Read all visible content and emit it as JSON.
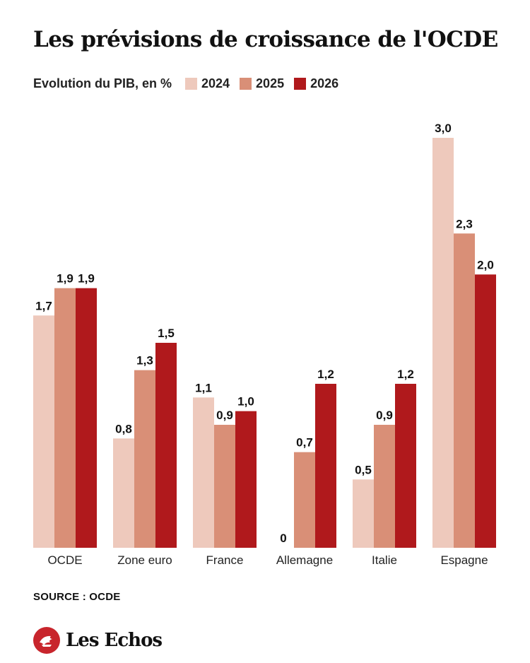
{
  "chart_data": {
    "type": "bar",
    "title": "Les prévisions de croissance de l'OCDE",
    "subtitle": "Evolution du PIB, en %",
    "categories": [
      "OCDE",
      "Zone euro",
      "France",
      "Allemagne",
      "Italie",
      "Espagne"
    ],
    "series": [
      {
        "name": "2024",
        "color": "#eec9bc",
        "values": [
          1.7,
          0.8,
          1.1,
          0,
          0.5,
          3.0
        ],
        "labels": [
          "1,7",
          "0,8",
          "1,1",
          "0",
          "0,5",
          "3,0"
        ]
      },
      {
        "name": "2025",
        "color": "#d98f77",
        "values": [
          1.9,
          1.3,
          0.9,
          0.7,
          0.9,
          2.3
        ],
        "labels": [
          "1,9",
          "1,3",
          "0,9",
          "0,7",
          "0,9",
          "2,3"
        ]
      },
      {
        "name": "2026",
        "color": "#b0191c",
        "values": [
          1.9,
          1.5,
          1.0,
          1.2,
          1.2,
          2.0
        ],
        "labels": [
          "1,9",
          "1,5",
          "1,0",
          "1,2",
          "1,2",
          "2,0"
        ]
      }
    ],
    "ylim": [
      0,
      3.0
    ],
    "grid": false,
    "legend_placement": "top"
  },
  "footer": {
    "source": "SOURCE : OCDE",
    "brand": "Les Echos",
    "brand_color": "#c8252c"
  }
}
